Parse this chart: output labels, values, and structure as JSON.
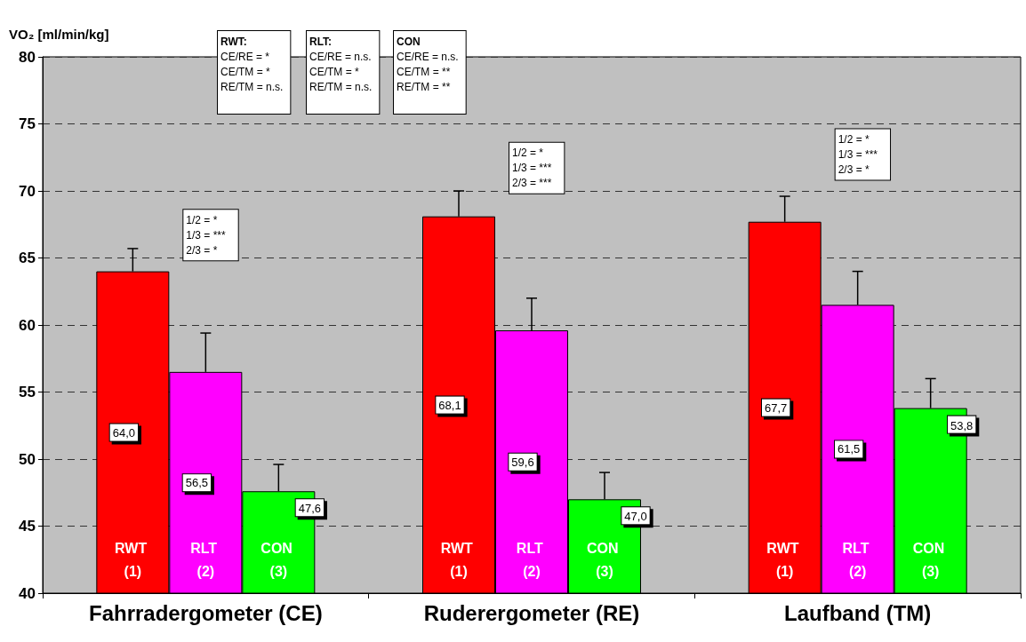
{
  "chart_data": {
    "type": "bar",
    "ylabel": "VO₂ [ml/min/kg]",
    "categories": [
      "Fahrradergometer (CE)",
      "Ruderergometer (RE)",
      "Laufband (TM)"
    ],
    "series": [
      {
        "name": "RWT (1)",
        "color": "#ff0000",
        "values": [
          64.0,
          68.1,
          67.7
        ],
        "value_labels": [
          "64,0",
          "68,1",
          "67,7"
        ],
        "errors": [
          [
            64.0,
            65.7
          ],
          [
            68.1,
            70.0
          ],
          [
            67.7,
            69.6
          ]
        ]
      },
      {
        "name": "RLT (2)",
        "color": "#ff00ff",
        "values": [
          56.5,
          59.6,
          61.5
        ],
        "value_labels": [
          "56,5",
          "59,6",
          "61,5"
        ],
        "errors": [
          [
            56.5,
            59.4
          ],
          [
            59.6,
            62.0
          ],
          [
            61.5,
            64.0
          ]
        ]
      },
      {
        "name": "CON (3)",
        "color": "#00ff00",
        "values": [
          47.6,
          47.0,
          53.8
        ],
        "value_labels": [
          "47,6",
          "47,0",
          "53,8"
        ],
        "errors": [
          [
            47.6,
            49.6
          ],
          [
            47.0,
            49.0
          ],
          [
            53.8,
            56.0
          ]
        ]
      }
    ],
    "ylim": [
      40,
      80
    ],
    "yticks": [
      40,
      45,
      50,
      55,
      60,
      65,
      70,
      75,
      80
    ],
    "grid": "y",
    "legend": false,
    "annotations": [
      "RWT:\nCE/RE = *\nCE/TM = *\nRE/TM = n.s.",
      "RLT:\nCE/RE = n.s.\nCE/TM = *\nRE/TM = n.s.",
      "CON\nCE/RE = n.s.\nCE/TM = **\nRE/TM = **",
      "1/2 = *\n1/3 = ***\n2/3 = *",
      "1/2 = *\n1/3 = ***\n2/3 = ***",
      "1/2 = *\n1/3 = ***\n2/3 = *"
    ]
  }
}
